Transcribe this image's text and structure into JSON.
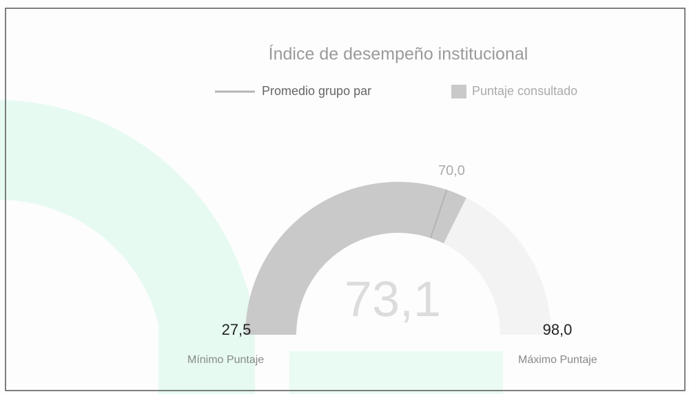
{
  "chart_data": {
    "type": "gauge",
    "title": "Índice de desempeño institucional",
    "ylim": [
      27.5,
      98.0
    ],
    "yticks": [
      {
        "value": 27.5,
        "label": "27,5"
      },
      {
        "value": 98.0,
        "label": "98,0"
      }
    ],
    "min_label": "Mínimo Puntaje",
    "max_label": "Máximo Puntaje",
    "series": [
      {
        "name": "Promedio grupo par",
        "color": "#b4b4b4",
        "values": [
          70.0
        ],
        "value_labels": [
          "70,0"
        ]
      },
      {
        "name": "Puntaje consultado",
        "color": "#c9c9c9",
        "values": [
          73.1
        ],
        "value_labels": [
          "73,1"
        ]
      }
    ]
  }
}
